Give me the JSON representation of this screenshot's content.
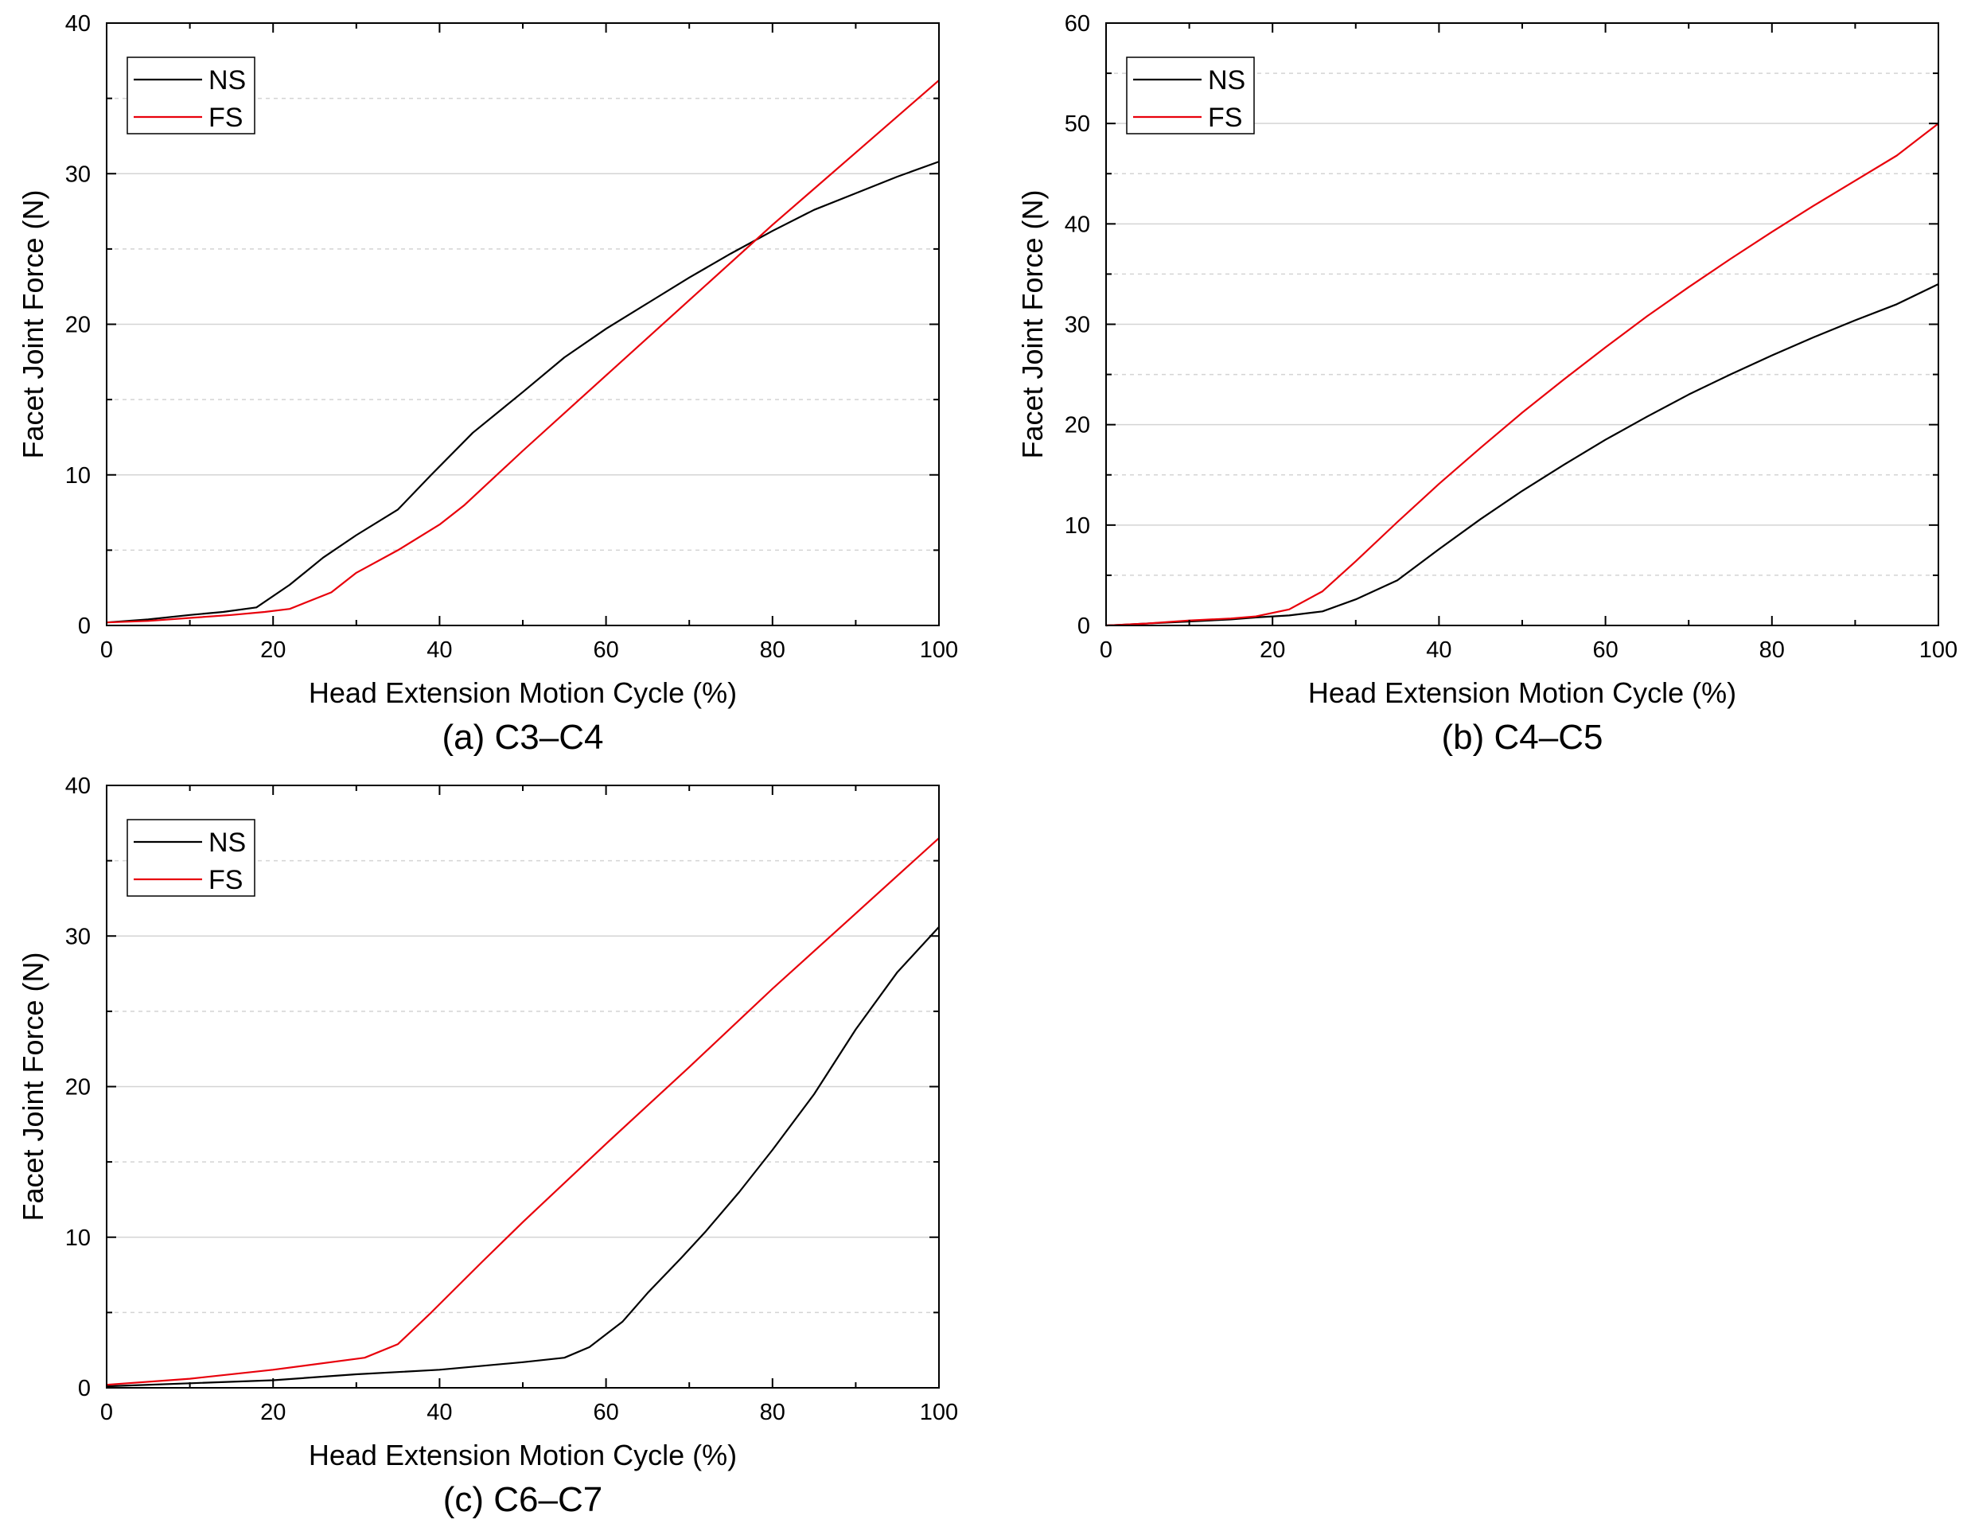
{
  "figure": {
    "colors": {
      "NS": "#000000",
      "FS": "#e8000b",
      "grid": "#d4d4d4",
      "frame": "#000000"
    }
  },
  "chart_data": [
    {
      "type": "line",
      "caption": "(a) C3–C4",
      "xlabel": "Head Extension Motion Cycle (%)",
      "ylabel": "Facet Joint Force (N)",
      "xlim": [
        0,
        100
      ],
      "ylim": [
        0,
        40
      ],
      "xticks": [
        0,
        20,
        40,
        60,
        80,
        100
      ],
      "yticks": [
        0,
        10,
        20,
        30,
        40
      ],
      "grid": true,
      "legend_position": "top-left",
      "series": [
        {
          "name": "NS",
          "x": [
            0,
            5,
            10,
            14,
            18,
            22,
            26,
            30,
            35,
            39,
            44,
            50,
            55,
            60,
            65,
            70,
            75,
            80,
            85,
            90,
            95,
            100
          ],
          "y": [
            0.2,
            0.4,
            0.7,
            0.9,
            1.2,
            2.7,
            4.5,
            6.0,
            7.7,
            10.0,
            12.8,
            15.5,
            17.8,
            19.7,
            21.4,
            23.1,
            24.7,
            26.2,
            27.6,
            28.7,
            29.8,
            30.8
          ]
        },
        {
          "name": "FS",
          "x": [
            0,
            5,
            10,
            15,
            19,
            22,
            27,
            30,
            35,
            40,
            43,
            50,
            60,
            70,
            80,
            90,
            100
          ],
          "y": [
            0.2,
            0.3,
            0.5,
            0.7,
            0.9,
            1.1,
            2.2,
            3.5,
            5.0,
            6.7,
            8.0,
            11.6,
            16.6,
            21.6,
            26.6,
            31.4,
            36.2
          ]
        }
      ]
    },
    {
      "type": "line",
      "caption": "(b) C4–C5",
      "xlabel": "Head Extension Motion Cycle (%)",
      "ylabel": "Facet Joint Force (N)",
      "xlim": [
        0,
        100
      ],
      "ylim": [
        0,
        60
      ],
      "xticks": [
        0,
        20,
        40,
        60,
        80,
        100
      ],
      "yticks": [
        0,
        10,
        20,
        30,
        40,
        50,
        60
      ],
      "grid": true,
      "legend_position": "top-left",
      "series": [
        {
          "name": "NS",
          "x": [
            0,
            5,
            10,
            15,
            18,
            22,
            26,
            30,
            35,
            40,
            45,
            50,
            55,
            60,
            65,
            70,
            75,
            80,
            85,
            90,
            95,
            100
          ],
          "y": [
            0,
            0.2,
            0.4,
            0.6,
            0.8,
            1.0,
            1.4,
            2.6,
            4.5,
            7.6,
            10.6,
            13.4,
            16.0,
            18.5,
            20.8,
            23.0,
            25.0,
            26.9,
            28.7,
            30.4,
            32.0,
            34.0
          ]
        },
        {
          "name": "FS",
          "x": [
            0,
            5,
            10,
            15,
            18,
            22,
            26,
            30,
            35,
            40,
            45,
            50,
            55,
            60,
            65,
            70,
            75,
            80,
            85,
            90,
            95,
            100
          ],
          "y": [
            0,
            0.2,
            0.5,
            0.7,
            0.9,
            1.6,
            3.4,
            6.4,
            10.3,
            14.1,
            17.7,
            21.2,
            24.5,
            27.7,
            30.8,
            33.7,
            36.5,
            39.2,
            41.8,
            44.3,
            46.8,
            50.0
          ]
        }
      ]
    },
    {
      "type": "line",
      "caption": "(c) C6–C7",
      "xlabel": "Head Extension Motion Cycle (%)",
      "ylabel": "Facet Joint Force (N)",
      "xlim": [
        0,
        100
      ],
      "ylim": [
        0,
        40
      ],
      "xticks": [
        0,
        20,
        40,
        60,
        80,
        100
      ],
      "yticks": [
        0,
        10,
        20,
        30,
        40
      ],
      "grid": true,
      "legend_position": "top-left",
      "series": [
        {
          "name": "NS",
          "x": [
            0,
            10,
            20,
            30,
            40,
            50,
            55,
            58,
            62,
            65,
            69,
            72,
            76,
            80,
            85,
            90,
            95,
            100
          ],
          "y": [
            0.1,
            0.3,
            0.5,
            0.9,
            1.2,
            1.7,
            2.0,
            2.7,
            4.4,
            6.3,
            8.6,
            10.4,
            13.0,
            15.8,
            19.5,
            23.8,
            27.6,
            30.6
          ]
        },
        {
          "name": "FS",
          "x": [
            0,
            10,
            20,
            31,
            35,
            39,
            45,
            50,
            60,
            70,
            80,
            90,
            100
          ],
          "y": [
            0.2,
            0.6,
            1.2,
            2.0,
            2.9,
            5.0,
            8.3,
            11.0,
            16.2,
            21.3,
            26.5,
            31.5,
            36.5
          ]
        }
      ]
    }
  ]
}
